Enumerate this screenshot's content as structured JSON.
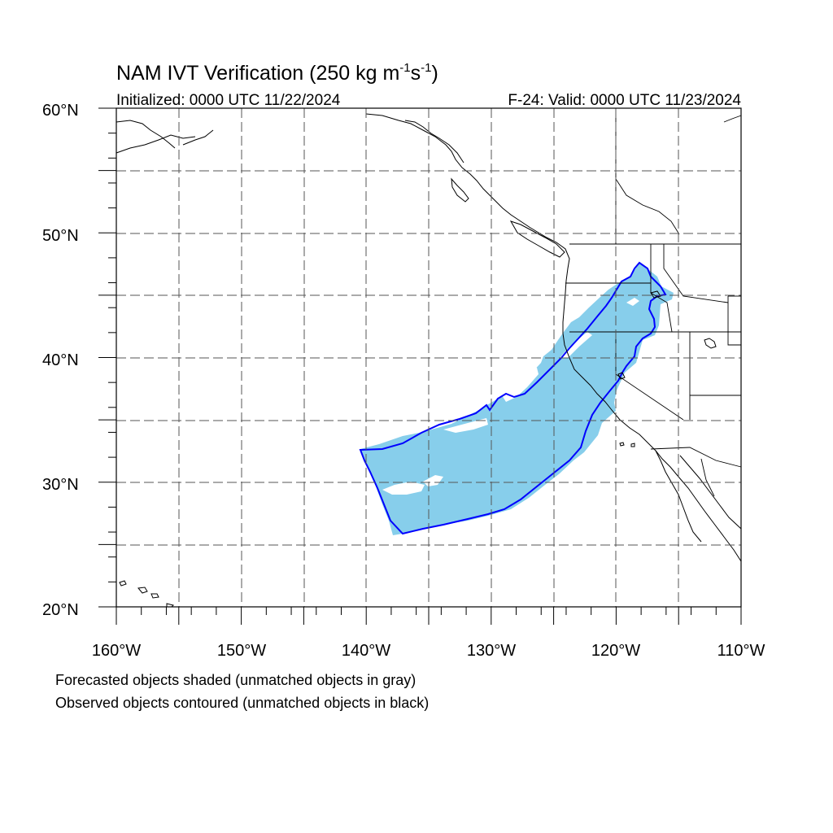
{
  "title": {
    "main": "NAM IVT Verification (250 kg m",
    "sup1": "-1",
    "mid": "s",
    "sup2": "-1",
    "close": ")"
  },
  "subtitle_left": "Initialized: 0000 UTC 11/22/2024",
  "subtitle_right": "F-24: Valid: 0000 UTC 11/23/2024",
  "map": {
    "lon_range": [
      -160,
      -110
    ],
    "lat_range": [
      20,
      60
    ],
    "lat_labels": [
      "60°N",
      "50°N",
      "40°N",
      "30°N",
      "20°N"
    ],
    "lon_labels": [
      "160°W",
      "150°W",
      "140°W",
      "130°W",
      "120°W",
      "110°W"
    ],
    "grid": "dashed, every 5 degrees",
    "colors": {
      "forecast_fill": "#87ceeb",
      "observed_contour": "#0000ff",
      "coastline": "#000000",
      "gridline": "#555555"
    }
  },
  "legend": {
    "line1": "Forecasted objects shaded (unmatched objects in gray)",
    "line2": "Observed objects contoured (unmatched objects in black)"
  }
}
